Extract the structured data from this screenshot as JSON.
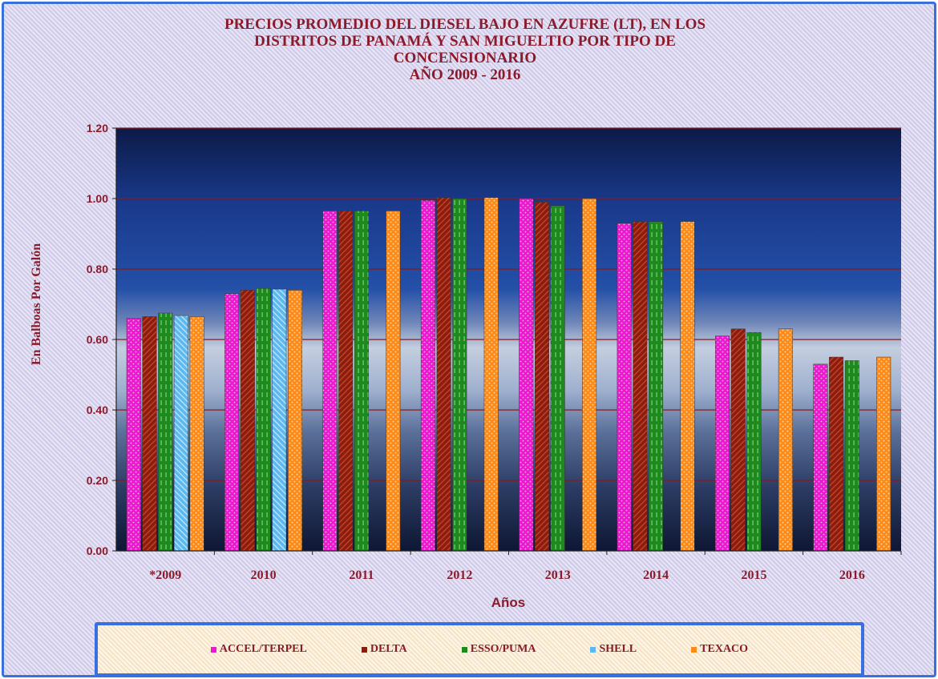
{
  "chart_data": {
    "type": "bar",
    "title": [
      "PRECIOS PROMEDIO DEL DIESEL BAJO EN AZUFRE (LT), EN LOS",
      "DISTRITOS DE PANAMÁ Y SAN MIGUELTIO POR TIPO DE",
      "CONCENSIONARIO",
      "AÑO 2009 - 2016"
    ],
    "xlabel": "Años",
    "ylabel": "En Balboas Por Galón",
    "ylim": [
      0,
      1.2
    ],
    "yticks": [
      "0.00",
      "0.20",
      "0.40",
      "0.60",
      "0.80",
      "1.00",
      "1.20"
    ],
    "grid": true,
    "legend_position": "bottom",
    "categories": [
      "*2009",
      "2010",
      "2011",
      "2012",
      "2013",
      "2014",
      "2015",
      "2016"
    ],
    "series": [
      {
        "name": "ACCEL/TERPEL",
        "color": "#e81ccd",
        "values": [
          0.66,
          0.73,
          0.965,
          0.995,
          1.0,
          0.93,
          0.61,
          0.53
        ]
      },
      {
        "name": "DELTA",
        "color": "#8b1c0e",
        "values": [
          0.665,
          0.74,
          0.965,
          1.003,
          0.99,
          0.935,
          0.63,
          0.55
        ]
      },
      {
        "name": "ESSO/PUMA",
        "color": "#1e8a1e",
        "values": [
          0.675,
          0.745,
          0.965,
          1.0,
          0.98,
          0.935,
          0.62,
          0.54
        ]
      },
      {
        "name": "SHELL",
        "color": "#5cb8ee",
        "values": [
          0.668,
          0.743,
          null,
          null,
          null,
          null,
          null,
          null
        ]
      },
      {
        "name": "TEXACO",
        "color": "#fb8a1a",
        "values": [
          0.665,
          0.74,
          0.965,
          1.003,
          1.0,
          0.935,
          0.63,
          0.55
        ]
      }
    ]
  }
}
